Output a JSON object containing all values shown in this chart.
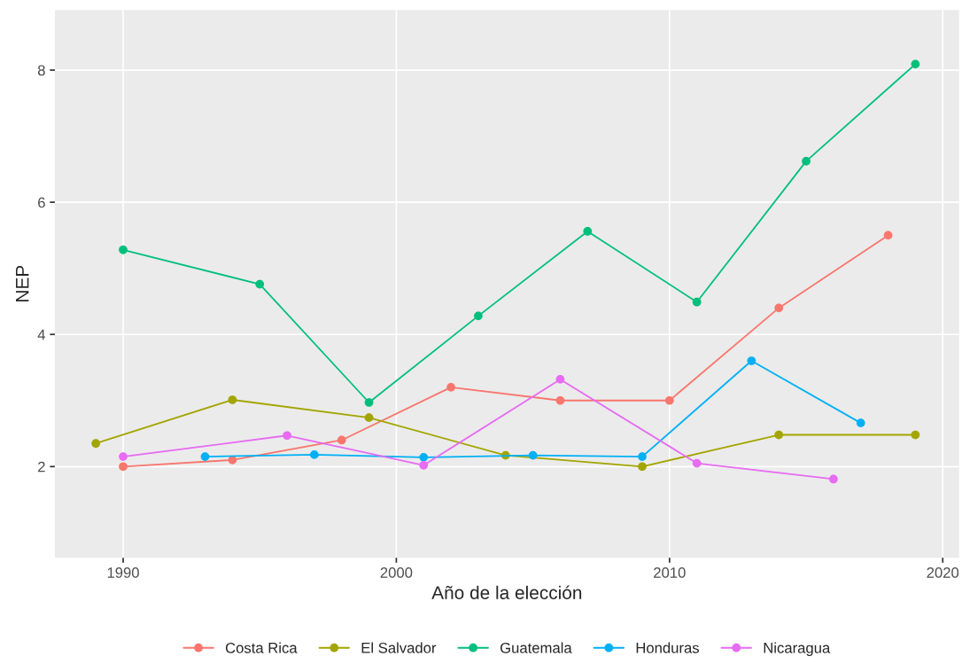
{
  "chart_data": {
    "type": "line",
    "xlabel": "Año de la elección",
    "ylabel": "NEP",
    "xlim": [
      1987.5,
      2020.6
    ],
    "ylim": [
      0.62,
      8.91
    ],
    "xticks": [
      1990,
      2000,
      2010,
      2020
    ],
    "yticks": [
      2,
      4,
      6,
      8
    ],
    "grid": true,
    "legend": "bottom",
    "marker": "circle",
    "line_style": "solid",
    "series": [
      {
        "name": "Costa Rica",
        "color": "#f8766d",
        "x": [
          1990,
          1994,
          1998,
          2002,
          2006,
          2010,
          2014,
          2018
        ],
        "values": [
          2.0,
          2.1,
          2.4,
          3.2,
          3.0,
          3.0,
          4.4,
          5.5
        ]
      },
      {
        "name": "El Salvador",
        "color": "#a3a500",
        "x": [
          1989,
          1994,
          1999,
          2004,
          2009,
          2014,
          2019
        ],
        "values": [
          2.35,
          3.01,
          2.74,
          2.17,
          2.0,
          2.48,
          2.48
        ]
      },
      {
        "name": "Guatemala",
        "color": "#00bf7d",
        "x": [
          1990,
          1995,
          1999,
          2003,
          2007,
          2011,
          2015,
          2019
        ],
        "values": [
          5.28,
          4.76,
          2.97,
          4.28,
          5.56,
          4.49,
          6.62,
          8.09
        ]
      },
      {
        "name": "Honduras",
        "color": "#00b0f6",
        "x": [
          1993,
          1997,
          2001,
          2005,
          2009,
          2013,
          2017
        ],
        "values": [
          2.15,
          2.18,
          2.14,
          2.17,
          2.15,
          3.6,
          2.66
        ]
      },
      {
        "name": "Nicaragua",
        "color": "#e76bf3",
        "x": [
          1990,
          1996,
          2001,
          2006,
          2011,
          2016
        ],
        "values": [
          2.15,
          2.47,
          2.02,
          3.32,
          2.05,
          1.81
        ]
      }
    ]
  }
}
